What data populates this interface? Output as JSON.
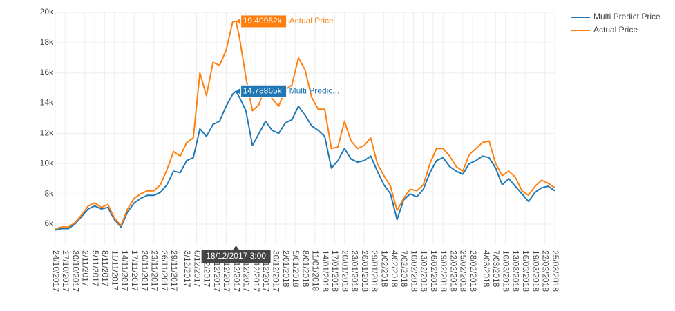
{
  "chart_data": {
    "type": "line",
    "x": [
      "24/10/2017",
      "26/10/2017",
      "28/10/2017",
      "30/10/2017",
      "1/11/2017",
      "3/11/2017",
      "5/11/2017",
      "7/11/2017",
      "9/11/2017",
      "11/11/2017",
      "13/11/2017",
      "15/11/2017",
      "17/11/2017",
      "19/11/2017",
      "21/11/2017",
      "23/11/2017",
      "25/11/2017",
      "27/11/2017",
      "29/11/2017",
      "1/12/2017",
      "3/12/2017",
      "5/12/2017",
      "7/12/2017",
      "9/12/2017",
      "11/12/2017",
      "13/12/2017",
      "15/12/2017",
      "17/12/2017",
      "18/12/2017",
      "19/12/2017",
      "21/12/2017",
      "23/12/2017",
      "25/12/2017",
      "27/12/2017",
      "29/12/2017",
      "31/12/2017",
      "2/01/2018",
      "4/01/2018",
      "6/01/2018",
      "8/01/2018",
      "10/01/2018",
      "12/01/2018",
      "14/01/2018",
      "16/01/2018",
      "18/01/2018",
      "20/01/2018",
      "22/01/2018",
      "24/01/2018",
      "26/01/2018",
      "28/01/2018",
      "30/01/2018",
      "1/02/2018",
      "3/02/2018",
      "5/02/2018",
      "7/02/2018",
      "9/02/2018",
      "11/02/2018",
      "13/02/2018",
      "15/02/2018",
      "17/02/2018",
      "19/02/2018",
      "21/02/2018",
      "23/02/2018",
      "25/02/2018",
      "27/02/2018",
      "1/03/2018",
      "3/03/2018",
      "5/03/2018",
      "7/03/2018",
      "9/03/2018",
      "11/03/2018",
      "13/03/2018",
      "15/03/2018",
      "17/03/2018",
      "19/03/2018",
      "21/03/2018",
      "23/03/2018",
      "25/03/2018"
    ],
    "series": [
      {
        "name": "Multi Predict Price",
        "color": "#1f77b4",
        "values": [
          5600,
          5700,
          5700,
          6000,
          6500,
          7000,
          7200,
          7000,
          7100,
          6300,
          5800,
          6800,
          7400,
          7700,
          7900,
          7900,
          8100,
          8600,
          9500,
          9400,
          10200,
          10400,
          12300,
          11800,
          12600,
          12800,
          13800,
          14600,
          14788.65,
          14400,
          13500,
          11200,
          12000,
          12800,
          12200,
          12000,
          12700,
          12900,
          13800,
          13200,
          12500,
          12200,
          11800,
          9700,
          10200,
          11000,
          10300,
          10100,
          10200,
          10500,
          9500,
          8600,
          8000,
          6300,
          7600,
          8000,
          7800,
          8300,
          9400,
          10200,
          10400,
          9800,
          9500,
          9300,
          10000,
          10200,
          10500,
          10400,
          9700,
          8600,
          9000,
          8500,
          8000,
          7500,
          8100,
          8400,
          8500,
          8200
        ]
      },
      {
        "name": "Actual Price",
        "color": "#ff7f0e",
        "values": [
          5700,
          5800,
          5800,
          6100,
          6600,
          7200,
          7400,
          7100,
          7300,
          6400,
          5900,
          7000,
          7700,
          8000,
          8200,
          8200,
          8600,
          9600,
          10800,
          10500,
          11400,
          11700,
          16000,
          14500,
          16700,
          16500,
          17500,
          19400,
          19409.52,
          18400,
          15700,
          13500,
          13900,
          15200,
          14300,
          13800,
          14900,
          15200,
          17000,
          16200,
          14400,
          13600,
          13600,
          11000,
          11100,
          12800,
          11500,
          11000,
          11200,
          11700,
          10000,
          9200,
          8500,
          6900,
          7700,
          8300,
          8200,
          8600,
          10000,
          11000,
          11000,
          10500,
          9800,
          9500,
          10600,
          11000,
          11400,
          11500,
          10000,
          9200,
          9500,
          9100,
          8200,
          7900,
          8500,
          8900,
          8700,
          8400
        ]
      }
    ],
    "xlim": [
      "24/10/2017",
      "25/03/2018"
    ],
    "xticks": [
      "24/10/2017",
      "27/10/2017",
      "30/10/2017",
      "2/11/2017",
      "5/11/2017",
      "8/11/2017",
      "11/11/2017",
      "14/11/2017",
      "17/11/2017",
      "20/11/2017",
      "23/11/2017",
      "26/11/2017",
      "29/11/2017",
      "3/12/2017",
      "6/12/2017",
      "9/12/2017",
      "12/12/2017",
      "15/12/2017",
      "18/12/2017",
      "21/12/2017",
      "24/12/2017",
      "27/12/2017",
      "30/12/2017",
      "2/01/2018",
      "5/01/2018",
      "8/01/2018",
      "11/01/2018",
      "14/01/2018",
      "17/01/2018",
      "20/01/2018",
      "23/01/2018",
      "26/01/2018",
      "29/01/2018",
      "1/02/2018",
      "4/02/2018",
      "7/02/2018",
      "10/02/2018",
      "13/02/2018",
      "16/02/2018",
      "19/02/2018",
      "22/02/2018",
      "25/02/2018",
      "28/02/2018",
      "4/03/2018",
      "7/03/2018",
      "10/03/2018",
      "13/03/2018",
      "16/03/2018",
      "19/03/2018",
      "22/03/2018",
      "25/03/2018"
    ],
    "ylim": [
      4630,
      20000
    ],
    "yticks": [
      {
        "value": 6000,
        "label": "6k"
      },
      {
        "value": 8000,
        "label": "8k"
      },
      {
        "value": 10000,
        "label": "10k"
      },
      {
        "value": 12000,
        "label": "12k"
      },
      {
        "value": 14000,
        "label": "14k"
      },
      {
        "value": 16000,
        "label": "16k"
      },
      {
        "value": 18000,
        "label": "18k"
      },
      {
        "value": 20000,
        "label": "20k"
      }
    ],
    "grid": true,
    "legend": "top-right",
    "hover": {
      "x_label": "18/12/2017 3:00",
      "items": [
        {
          "series": "Actual Price",
          "value_label": "19.40952k",
          "name_label": "Actual Price"
        },
        {
          "series": "Multi Predict Price",
          "value_label": "14.78865k",
          "name_label": "Multi Predic..."
        }
      ]
    }
  }
}
